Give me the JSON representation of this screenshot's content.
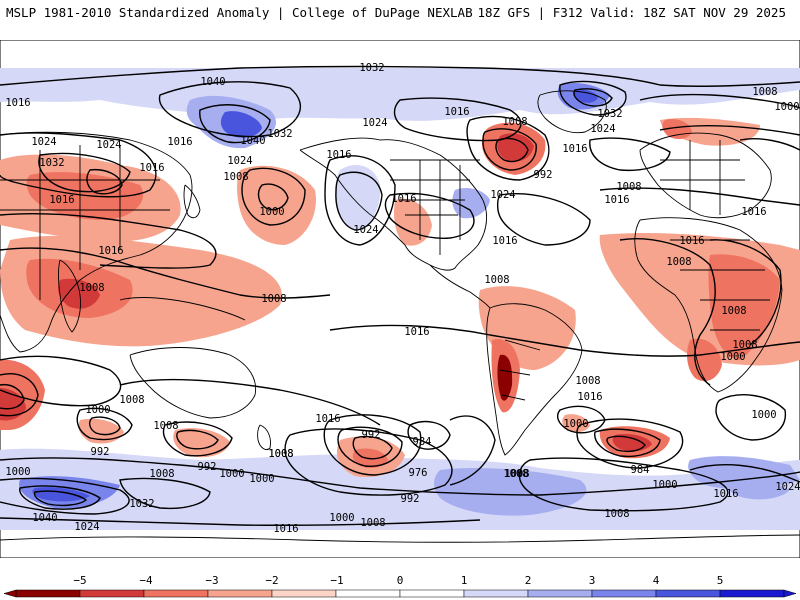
{
  "header": {
    "title": "MSLP 1981-2010 Standardized Anomaly | College of DuPage NEXLAB",
    "run_info": "18Z GFS | F312 Valid: 18Z SAT NOV 29 2025"
  },
  "colors": {
    "neg5": "#8b0000",
    "neg4": "#d23a3a",
    "neg3": "#ef7361",
    "neg2": "#f7a48e",
    "neg1": "#fcd5c8",
    "pos1": "#d5d8f7",
    "pos2": "#a6aef0",
    "pos3": "#7985ea",
    "pos4": "#4a55de",
    "pos5": "#1a1ad0",
    "land": "#000000",
    "contour": "#000000"
  },
  "isobars": [
    {
      "label": "1032"
    },
    {
      "label": "1040"
    },
    {
      "label": "1016"
    },
    {
      "label": "1024"
    },
    {
      "label": "1032"
    },
    {
      "label": "1040"
    },
    {
      "label": "1024"
    },
    {
      "label": "1016"
    },
    {
      "label": "1008"
    },
    {
      "label": "1016"
    },
    {
      "label": "1000"
    },
    {
      "label": "1016"
    },
    {
      "label": "1024"
    },
    {
      "label": "1016"
    },
    {
      "label": "1024"
    },
    {
      "label": "1016"
    },
    {
      "label": "1032"
    },
    {
      "label": "1024"
    },
    {
      "label": "1016"
    },
    {
      "label": "1008"
    },
    {
      "label": "992"
    },
    {
      "label": "1008"
    },
    {
      "label": "1016"
    },
    {
      "label": "1008"
    },
    {
      "label": "1000"
    },
    {
      "label": "1024"
    },
    {
      "label": "1024"
    },
    {
      "label": "1032"
    },
    {
      "label": "1016"
    },
    {
      "label": "1016"
    },
    {
      "label": "1008"
    },
    {
      "label": "1008"
    },
    {
      "label": "1016"
    },
    {
      "label": "1016"
    },
    {
      "label": "1008"
    },
    {
      "label": "1008"
    },
    {
      "label": "1016"
    },
    {
      "label": "1008"
    },
    {
      "label": "1016"
    },
    {
      "label": "1008"
    },
    {
      "label": "1000"
    },
    {
      "label": "1008"
    },
    {
      "label": "992"
    },
    {
      "label": "1008"
    },
    {
      "label": "992"
    },
    {
      "label": "1000"
    },
    {
      "label": "1008"
    },
    {
      "label": "1016"
    },
    {
      "label": "992"
    },
    {
      "label": "984"
    },
    {
      "label": "976"
    },
    {
      "label": "992"
    },
    {
      "label": "1008"
    },
    {
      "label": "1000"
    },
    {
      "label": "1016"
    },
    {
      "label": "1000"
    },
    {
      "label": "984"
    },
    {
      "label": "1000"
    },
    {
      "label": "1016"
    },
    {
      "label": "1024"
    },
    {
      "label": "1000"
    },
    {
      "label": "1000"
    },
    {
      "label": "1008"
    },
    {
      "label": "1032"
    },
    {
      "label": "1040"
    },
    {
      "label": "1024"
    },
    {
      "label": "1016"
    },
    {
      "label": "1008"
    },
    {
      "label": "1008"
    },
    {
      "label": "1000"
    },
    {
      "label": "1000"
    },
    {
      "label": "1008"
    },
    {
      "label": "1008"
    },
    {
      "label": "1008"
    }
  ],
  "colorbar": {
    "ticks": [
      "−5",
      "−4",
      "−3",
      "−2",
      "−1",
      "0",
      "1",
      "2",
      "3",
      "4",
      "5"
    ]
  }
}
